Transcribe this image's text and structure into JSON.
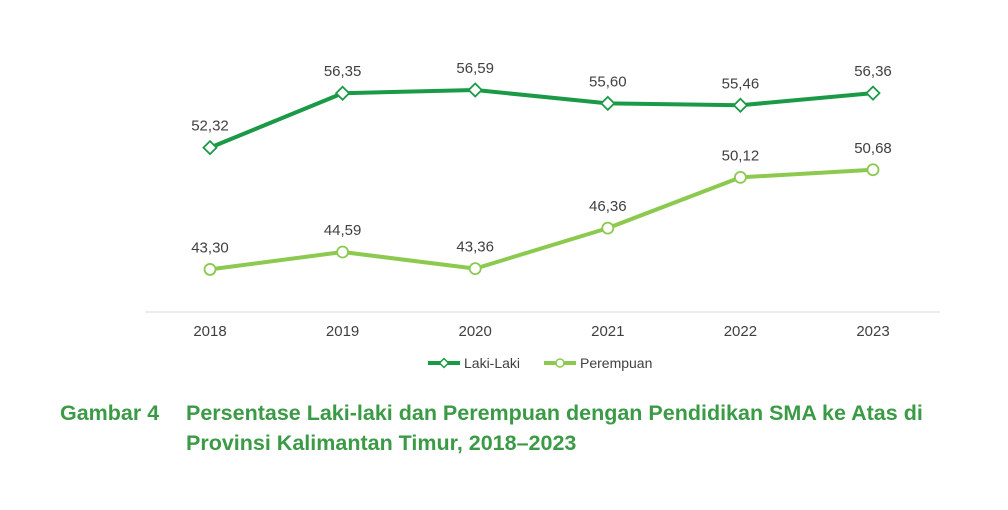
{
  "chart_data": {
    "type": "line",
    "categories": [
      "2018",
      "2019",
      "2020",
      "2021",
      "2022",
      "2023"
    ],
    "series": [
      {
        "name": "Laki-Laki",
        "values": [
          52.32,
          56.35,
          56.59,
          55.6,
          55.46,
          56.36
        ],
        "labels": [
          "52,32",
          "56,35",
          "56,59",
          "55,60",
          "55,46",
          "56,36"
        ],
        "color": "#1a9a47",
        "marker": "diamond"
      },
      {
        "name": "Perempuan",
        "values": [
          43.3,
          44.59,
          43.36,
          46.36,
          50.12,
          50.68
        ],
        "labels": [
          "43,30",
          "44,59",
          "43,36",
          "46,36",
          "50,12",
          "50,68"
        ],
        "color": "#8cc94f",
        "marker": "circle"
      }
    ],
    "legend_position": "bottom",
    "grid": false
  },
  "caption": {
    "label": "Gambar 4",
    "title": "Persentase Laki-laki dan Perempuan dengan Pendidikan SMA ke Atas di Provinsi Kalimantan Timur, 2018–2023"
  }
}
